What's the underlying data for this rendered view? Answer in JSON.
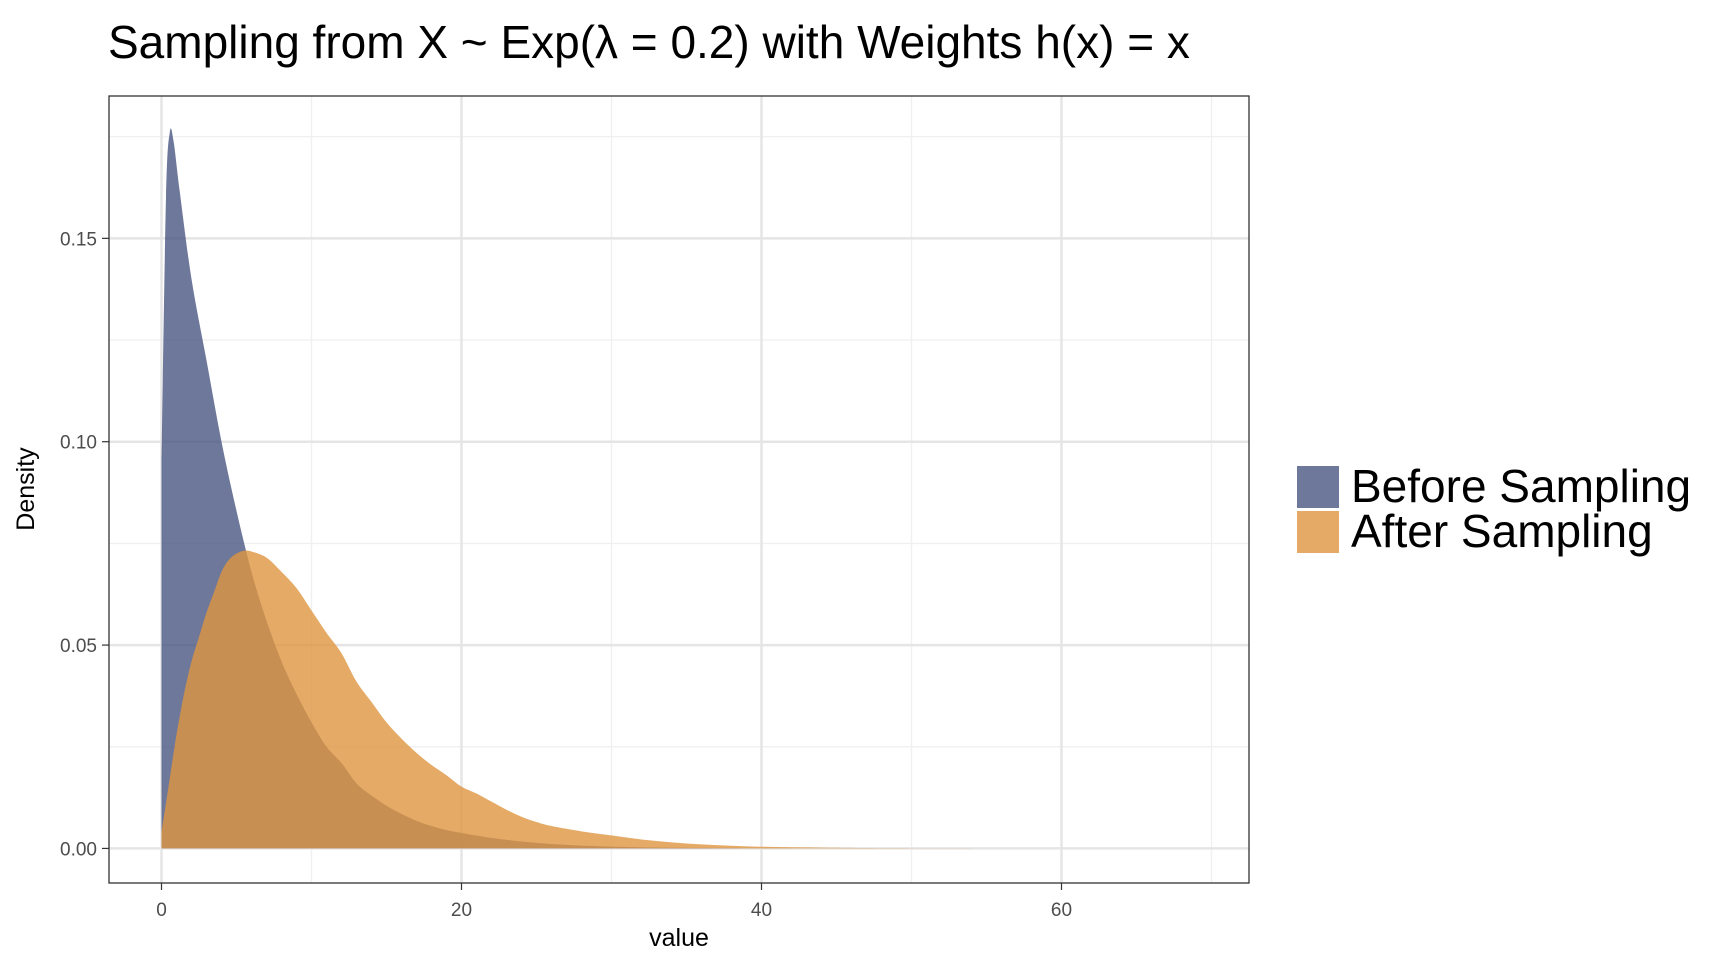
{
  "chart_data": {
    "type": "area",
    "title": "Sampling from X ~ Exp(λ = 0.2) with Weights h(x) = x",
    "xlabel": "value",
    "ylabel": "Density",
    "xlim": [
      -3.5,
      72.5
    ],
    "ylim": [
      -0.0085,
      0.185
    ],
    "x_ticks": [
      {
        "value": 0,
        "label": "0"
      },
      {
        "value": 20,
        "label": "20"
      },
      {
        "value": 40,
        "label": "40"
      },
      {
        "value": 60,
        "label": "60"
      }
    ],
    "y_ticks": [
      {
        "value": 0.0,
        "label": "0.00"
      },
      {
        "value": 0.05,
        "label": "0.05"
      },
      {
        "value": 0.1,
        "label": "0.10"
      },
      {
        "value": 0.15,
        "label": "0.15"
      }
    ],
    "x_minor_ticks": [
      10,
      30,
      50,
      70
    ],
    "y_minor_ticks": [
      0.025,
      0.075,
      0.125,
      0.175
    ],
    "grid": true,
    "legend_position": "right",
    "series": [
      {
        "name": "Before Sampling",
        "color": "#404d7a",
        "opacity": 0.76,
        "points": [
          [
            0,
            0.095
          ],
          [
            0.3,
            0.16
          ],
          [
            0.55,
            0.176
          ],
          [
            0.8,
            0.174
          ],
          [
            1.2,
            0.162
          ],
          [
            2,
            0.14
          ],
          [
            3,
            0.12
          ],
          [
            4,
            0.1
          ],
          [
            5,
            0.083
          ],
          [
            6,
            0.068
          ],
          [
            7,
            0.056
          ],
          [
            8,
            0.046
          ],
          [
            9,
            0.038
          ],
          [
            10,
            0.031
          ],
          [
            11,
            0.025
          ],
          [
            12,
            0.021
          ],
          [
            13,
            0.016
          ],
          [
            14,
            0.013
          ],
          [
            15,
            0.0105
          ],
          [
            16,
            0.0085
          ],
          [
            17,
            0.0068
          ],
          [
            18,
            0.0055
          ],
          [
            19,
            0.0045
          ],
          [
            20,
            0.0038
          ],
          [
            22,
            0.0026
          ],
          [
            24,
            0.0017
          ],
          [
            26,
            0.0011
          ],
          [
            28,
            0.0007
          ],
          [
            30,
            0.00045
          ],
          [
            33,
            0.0002
          ],
          [
            36,
            0.0001
          ],
          [
            40,
            4e-05
          ],
          [
            45,
            1e-05
          ],
          [
            50,
            0.0
          ]
        ]
      },
      {
        "name": "After Sampling",
        "color": "#df9540",
        "opacity": 0.8,
        "points": [
          [
            0,
            0.004
          ],
          [
            0.5,
            0.016
          ],
          [
            1,
            0.028
          ],
          [
            1.5,
            0.038
          ],
          [
            2,
            0.046
          ],
          [
            2.5,
            0.052
          ],
          [
            3,
            0.058
          ],
          [
            3.5,
            0.063
          ],
          [
            4,
            0.068
          ],
          [
            4.5,
            0.071
          ],
          [
            5,
            0.0725
          ],
          [
            5.5,
            0.0732
          ],
          [
            6,
            0.073
          ],
          [
            7,
            0.0715
          ],
          [
            8,
            0.068
          ],
          [
            9,
            0.064
          ],
          [
            10,
            0.0585
          ],
          [
            11,
            0.053
          ],
          [
            12,
            0.048
          ],
          [
            13,
            0.041
          ],
          [
            14,
            0.036
          ],
          [
            15,
            0.031
          ],
          [
            16,
            0.027
          ],
          [
            17,
            0.0235
          ],
          [
            18,
            0.0205
          ],
          [
            19,
            0.018
          ],
          [
            20,
            0.0152
          ],
          [
            21,
            0.0135
          ],
          [
            22,
            0.0115
          ],
          [
            23,
            0.0095
          ],
          [
            24,
            0.0078
          ],
          [
            25,
            0.0065
          ],
          [
            26,
            0.0055
          ],
          [
            28,
            0.0042
          ],
          [
            30,
            0.0032
          ],
          [
            32,
            0.0022
          ],
          [
            34,
            0.0015
          ],
          [
            36,
            0.001
          ],
          [
            38,
            0.00065
          ],
          [
            40,
            0.0004
          ],
          [
            44,
            0.0002
          ],
          [
            48,
            8e-05
          ],
          [
            55,
            2e-05
          ],
          [
            62,
            0.0
          ]
        ]
      }
    ]
  }
}
